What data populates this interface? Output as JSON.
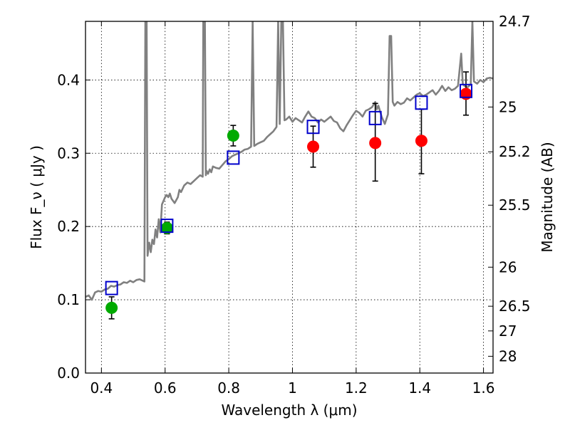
{
  "chart_data": {
    "type": "scatter",
    "title": "",
    "xlabel": "Wavelength  λ (μm)",
    "ylabel": "Flux  F_ν  ( μJy )",
    "ylabel_right": "Magnitude (AB)",
    "xlim": [
      0.35,
      1.63
    ],
    "ylim": [
      0.0,
      0.48
    ],
    "grid": true,
    "x_ticks": [
      0.4,
      0.6,
      0.8,
      1.0,
      1.2,
      1.4,
      1.6
    ],
    "x_tick_labels": [
      "0.4",
      "0.6",
      "0.8",
      "1",
      "1.2",
      "1.4",
      "1.6"
    ],
    "y_ticks": [
      0.0,
      0.1,
      0.2,
      0.3,
      0.4
    ],
    "y_tick_labels": [
      "0.0",
      "0.1",
      "0.2",
      "0.3",
      "0.4"
    ],
    "right_axis_ticks": [
      {
        "label": "24.7",
        "flux": 0.48
      },
      {
        "label": "25",
        "flux": 0.3631
      },
      {
        "label": "25.2",
        "flux": 0.302
      },
      {
        "label": "25.5",
        "flux": 0.2291
      },
      {
        "label": "26",
        "flux": 0.1445
      },
      {
        "label": "26.5",
        "flux": 0.0912
      },
      {
        "label": "27",
        "flux": 0.0575
      },
      {
        "label": "28",
        "flux": 0.0229
      }
    ],
    "series": [
      {
        "marker": "circle",
        "color": "#00aa00",
        "points": [
          {
            "x": 0.432,
            "y": 0.089,
            "err_lo": 0.015,
            "err_hi": 0.015
          },
          {
            "x": 0.606,
            "y": 0.198,
            "err_lo": 0.008,
            "err_hi": 0.008
          },
          {
            "x": 0.814,
            "y": 0.324,
            "err_lo": 0.014,
            "err_hi": 0.014
          }
        ]
      },
      {
        "marker": "circle",
        "color": "#ff0000",
        "points": [
          {
            "x": 1.065,
            "y": 0.309,
            "err_lo": 0.028,
            "err_hi": 0.028
          },
          {
            "x": 1.26,
            "y": 0.314,
            "err_lo": 0.052,
            "err_hi": 0.054
          },
          {
            "x": 1.405,
            "y": 0.317,
            "err_lo": 0.045,
            "err_hi": 0.043
          },
          {
            "x": 1.545,
            "y": 0.381,
            "err_lo": 0.029,
            "err_hi": 0.03
          }
        ]
      },
      {
        "marker": "square-open",
        "color": "#0000cc",
        "points": [
          {
            "x": 0.432,
            "y": 0.116
          },
          {
            "x": 0.606,
            "y": 0.201
          },
          {
            "x": 0.814,
            "y": 0.294
          },
          {
            "x": 1.065,
            "y": 0.336
          },
          {
            "x": 1.26,
            "y": 0.348
          },
          {
            "x": 1.405,
            "y": 0.369
          },
          {
            "x": 1.545,
            "y": 0.385
          }
        ]
      }
    ],
    "spectrum": {
      "color": "#808080",
      "points": [
        [
          0.35,
          0.104
        ],
        [
          0.36,
          0.106
        ],
        [
          0.37,
          0.1
        ],
        [
          0.38,
          0.11
        ],
        [
          0.39,
          0.112
        ],
        [
          0.4,
          0.111
        ],
        [
          0.41,
          0.114
        ],
        [
          0.42,
          0.115
        ],
        [
          0.43,
          0.119
        ],
        [
          0.44,
          0.118
        ],
        [
          0.45,
          0.12
        ],
        [
          0.46,
          0.121
        ],
        [
          0.47,
          0.124
        ],
        [
          0.48,
          0.123
        ],
        [
          0.49,
          0.126
        ],
        [
          0.5,
          0.124
        ],
        [
          0.51,
          0.127
        ],
        [
          0.52,
          0.128
        ],
        [
          0.53,
          0.126
        ],
        [
          0.535,
          0.125
        ],
        [
          0.538,
          0.48
        ],
        [
          0.542,
          0.48
        ],
        [
          0.545,
          0.16
        ],
        [
          0.55,
          0.178
        ],
        [
          0.555,
          0.165
        ],
        [
          0.56,
          0.182
        ],
        [
          0.565,
          0.176
        ],
        [
          0.57,
          0.196
        ],
        [
          0.575,
          0.185
        ],
        [
          0.58,
          0.21
        ],
        [
          0.585,
          0.192
        ],
        [
          0.59,
          0.23
        ],
        [
          0.595,
          0.235
        ],
        [
          0.6,
          0.24
        ],
        [
          0.605,
          0.243
        ],
        [
          0.61,
          0.24
        ],
        [
          0.615,
          0.245
        ],
        [
          0.62,
          0.238
        ],
        [
          0.63,
          0.232
        ],
        [
          0.64,
          0.24
        ],
        [
          0.645,
          0.25
        ],
        [
          0.65,
          0.247
        ],
        [
          0.66,
          0.256
        ],
        [
          0.67,
          0.26
        ],
        [
          0.68,
          0.258
        ],
        [
          0.69,
          0.262
        ],
        [
          0.7,
          0.266
        ],
        [
          0.71,
          0.27
        ],
        [
          0.718,
          0.268
        ],
        [
          0.72,
          0.48
        ],
        [
          0.725,
          0.48
        ],
        [
          0.728,
          0.27
        ],
        [
          0.73,
          0.276
        ],
        [
          0.735,
          0.272
        ],
        [
          0.74,
          0.278
        ],
        [
          0.745,
          0.274
        ],
        [
          0.75,
          0.282
        ],
        [
          0.76,
          0.28
        ],
        [
          0.77,
          0.279
        ],
        [
          0.78,
          0.284
        ],
        [
          0.79,
          0.289
        ],
        [
          0.8,
          0.292
        ],
        [
          0.81,
          0.296
        ],
        [
          0.82,
          0.298
        ],
        [
          0.83,
          0.3
        ],
        [
          0.84,
          0.302
        ],
        [
          0.85,
          0.305
        ],
        [
          0.86,
          0.306
        ],
        [
          0.87,
          0.309
        ],
        [
          0.875,
          0.48
        ],
        [
          0.88,
          0.31
        ],
        [
          0.89,
          0.313
        ],
        [
          0.9,
          0.315
        ],
        [
          0.91,
          0.317
        ],
        [
          0.92,
          0.322
        ],
        [
          0.93,
          0.326
        ],
        [
          0.94,
          0.33
        ],
        [
          0.95,
          0.336
        ],
        [
          0.955,
          0.48
        ],
        [
          0.96,
          0.34
        ],
        [
          0.965,
          0.48
        ],
        [
          0.97,
          0.48
        ],
        [
          0.975,
          0.345
        ],
        [
          0.98,
          0.346
        ],
        [
          0.99,
          0.35
        ],
        [
          1.0,
          0.343
        ],
        [
          1.01,
          0.348
        ],
        [
          1.02,
          0.345
        ],
        [
          1.03,
          0.342
        ],
        [
          1.04,
          0.35
        ],
        [
          1.05,
          0.357
        ],
        [
          1.06,
          0.35
        ],
        [
          1.07,
          0.348
        ],
        [
          1.08,
          0.342
        ],
        [
          1.09,
          0.346
        ],
        [
          1.1,
          0.343
        ],
        [
          1.12,
          0.35
        ],
        [
          1.13,
          0.344
        ],
        [
          1.14,
          0.342
        ],
        [
          1.15,
          0.334
        ],
        [
          1.16,
          0.33
        ],
        [
          1.17,
          0.338
        ],
        [
          1.18,
          0.345
        ],
        [
          1.19,
          0.352
        ],
        [
          1.2,
          0.358
        ],
        [
          1.21,
          0.355
        ],
        [
          1.22,
          0.35
        ],
        [
          1.23,
          0.358
        ],
        [
          1.24,
          0.36
        ],
        [
          1.25,
          0.363
        ],
        [
          1.26,
          0.37
        ],
        [
          1.265,
          0.36
        ],
        [
          1.27,
          0.365
        ],
        [
          1.28,
          0.35
        ],
        [
          1.29,
          0.34
        ],
        [
          1.3,
          0.353
        ],
        [
          1.305,
          0.46
        ],
        [
          1.31,
          0.46
        ],
        [
          1.315,
          0.37
        ],
        [
          1.32,
          0.365
        ],
        [
          1.33,
          0.37
        ],
        [
          1.34,
          0.367
        ],
        [
          1.35,
          0.369
        ],
        [
          1.36,
          0.375
        ],
        [
          1.37,
          0.372
        ],
        [
          1.38,
          0.376
        ],
        [
          1.39,
          0.38
        ],
        [
          1.4,
          0.382
        ],
        [
          1.41,
          0.378
        ],
        [
          1.42,
          0.38
        ],
        [
          1.43,
          0.383
        ],
        [
          1.44,
          0.386
        ],
        [
          1.45,
          0.38
        ],
        [
          1.46,
          0.385
        ],
        [
          1.47,
          0.392
        ],
        [
          1.48,
          0.385
        ],
        [
          1.49,
          0.39
        ],
        [
          1.5,
          0.386
        ],
        [
          1.51,
          0.388
        ],
        [
          1.52,
          0.392
        ],
        [
          1.53,
          0.436
        ],
        [
          1.535,
          0.395
        ],
        [
          1.54,
          0.392
        ],
        [
          1.55,
          0.39
        ],
        [
          1.56,
          0.394
        ],
        [
          1.565,
          0.48
        ],
        [
          1.57,
          0.398
        ],
        [
          1.58,
          0.395
        ],
        [
          1.59,
          0.4
        ],
        [
          1.6,
          0.397
        ],
        [
          1.61,
          0.402
        ],
        [
          1.62,
          0.403
        ],
        [
          1.63,
          0.402
        ]
      ]
    }
  }
}
